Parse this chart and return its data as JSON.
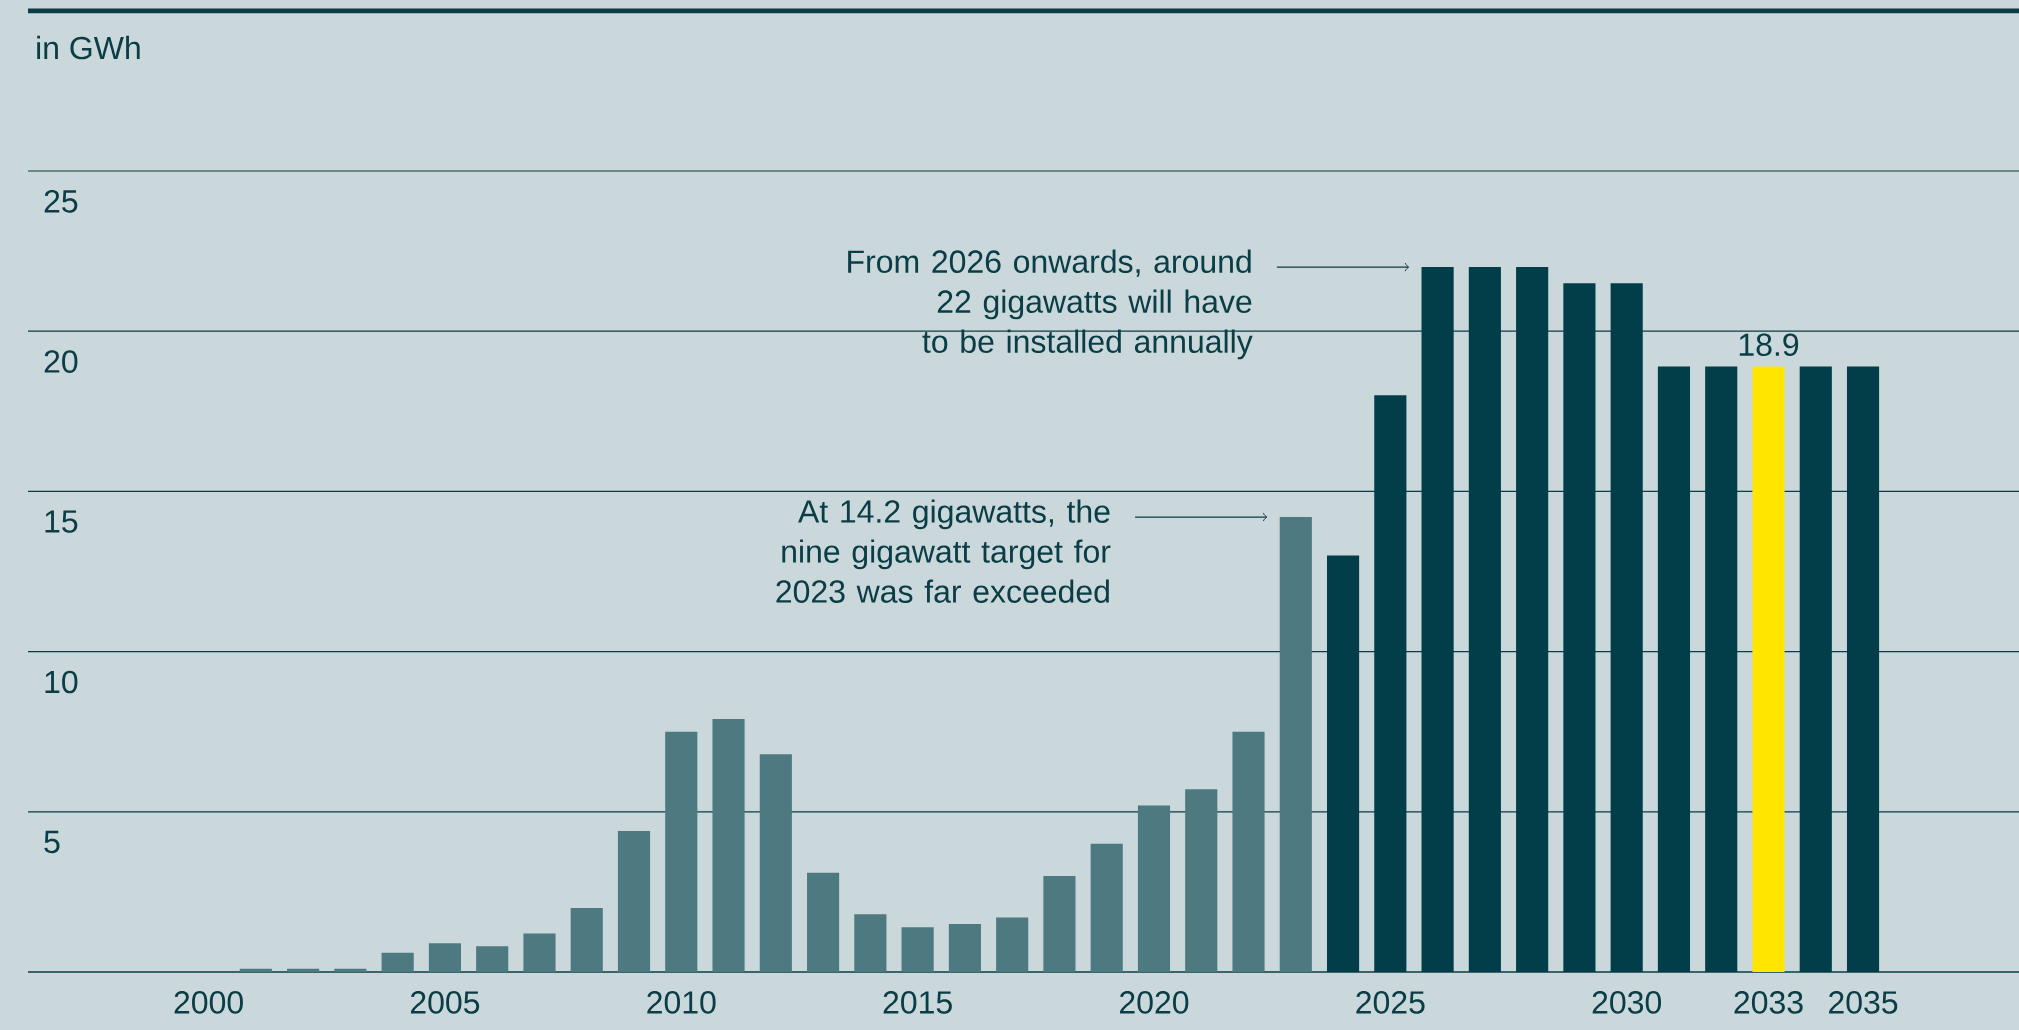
{
  "chart_data": {
    "type": "bar",
    "ylabel": "in GWh",
    "categories": [
      "2000",
      null,
      null,
      null,
      null,
      "2005",
      null,
      null,
      null,
      null,
      "2010",
      null,
      null,
      null,
      null,
      "2015",
      null,
      null,
      null,
      null,
      "2020",
      null,
      null,
      null,
      null,
      "2025",
      null,
      null,
      null,
      null,
      "2030",
      null,
      null,
      "2033",
      null,
      "2035"
    ],
    "values": [
      null,
      0.1,
      0.1,
      0.1,
      0.6,
      0.9,
      0.8,
      1.2,
      2.0,
      4.4,
      7.5,
      7.9,
      6.8,
      3.1,
      1.8,
      1.4,
      1.5,
      1.7,
      3.0,
      4.0,
      5.2,
      5.7,
      7.5,
      14.2,
      13.0,
      18.0,
      22.0,
      22.0,
      22.0,
      21.5,
      21.5,
      18.9,
      18.9,
      18.9,
      18.9,
      18.9
    ],
    "colors": [
      "#4d7a80",
      "#4d7a80",
      "#4d7a80",
      "#4d7a80",
      "#4d7a80",
      "#4d7a80",
      "#4d7a80",
      "#4d7a80",
      "#4d7a80",
      "#4d7a80",
      "#4d7a80",
      "#4d7a80",
      "#4d7a80",
      "#4d7a80",
      "#4d7a80",
      "#4d7a80",
      "#4d7a80",
      "#4d7a80",
      "#4d7a80",
      "#4d7a80",
      "#4d7a80",
      "#4d7a80",
      "#4d7a80",
      "#4d7a80",
      "#023e4a",
      "#023e4a",
      "#023e4a",
      "#023e4a",
      "#023e4a",
      "#023e4a",
      "#023e4a",
      "#023e4a",
      "#023e4a",
      "#ffe600",
      "#023e4a",
      "#023e4a"
    ],
    "value_labels": [
      null,
      null,
      null,
      null,
      null,
      null,
      null,
      null,
      null,
      null,
      null,
      null,
      null,
      null,
      null,
      null,
      null,
      null,
      null,
      null,
      null,
      null,
      null,
      null,
      null,
      null,
      null,
      null,
      null,
      null,
      null,
      null,
      null,
      "18.9",
      null,
      null
    ],
    "ylim": [
      0,
      30
    ],
    "yticks": [
      5,
      10,
      15,
      20,
      25
    ],
    "grid": "y",
    "annotations": [
      "From 2026 onwards, around 22 gigawatts will have to be installed annually",
      "At 14.2 gigawatts, the nine gigawatt target for 2023 was far exceeded"
    ]
  }
}
